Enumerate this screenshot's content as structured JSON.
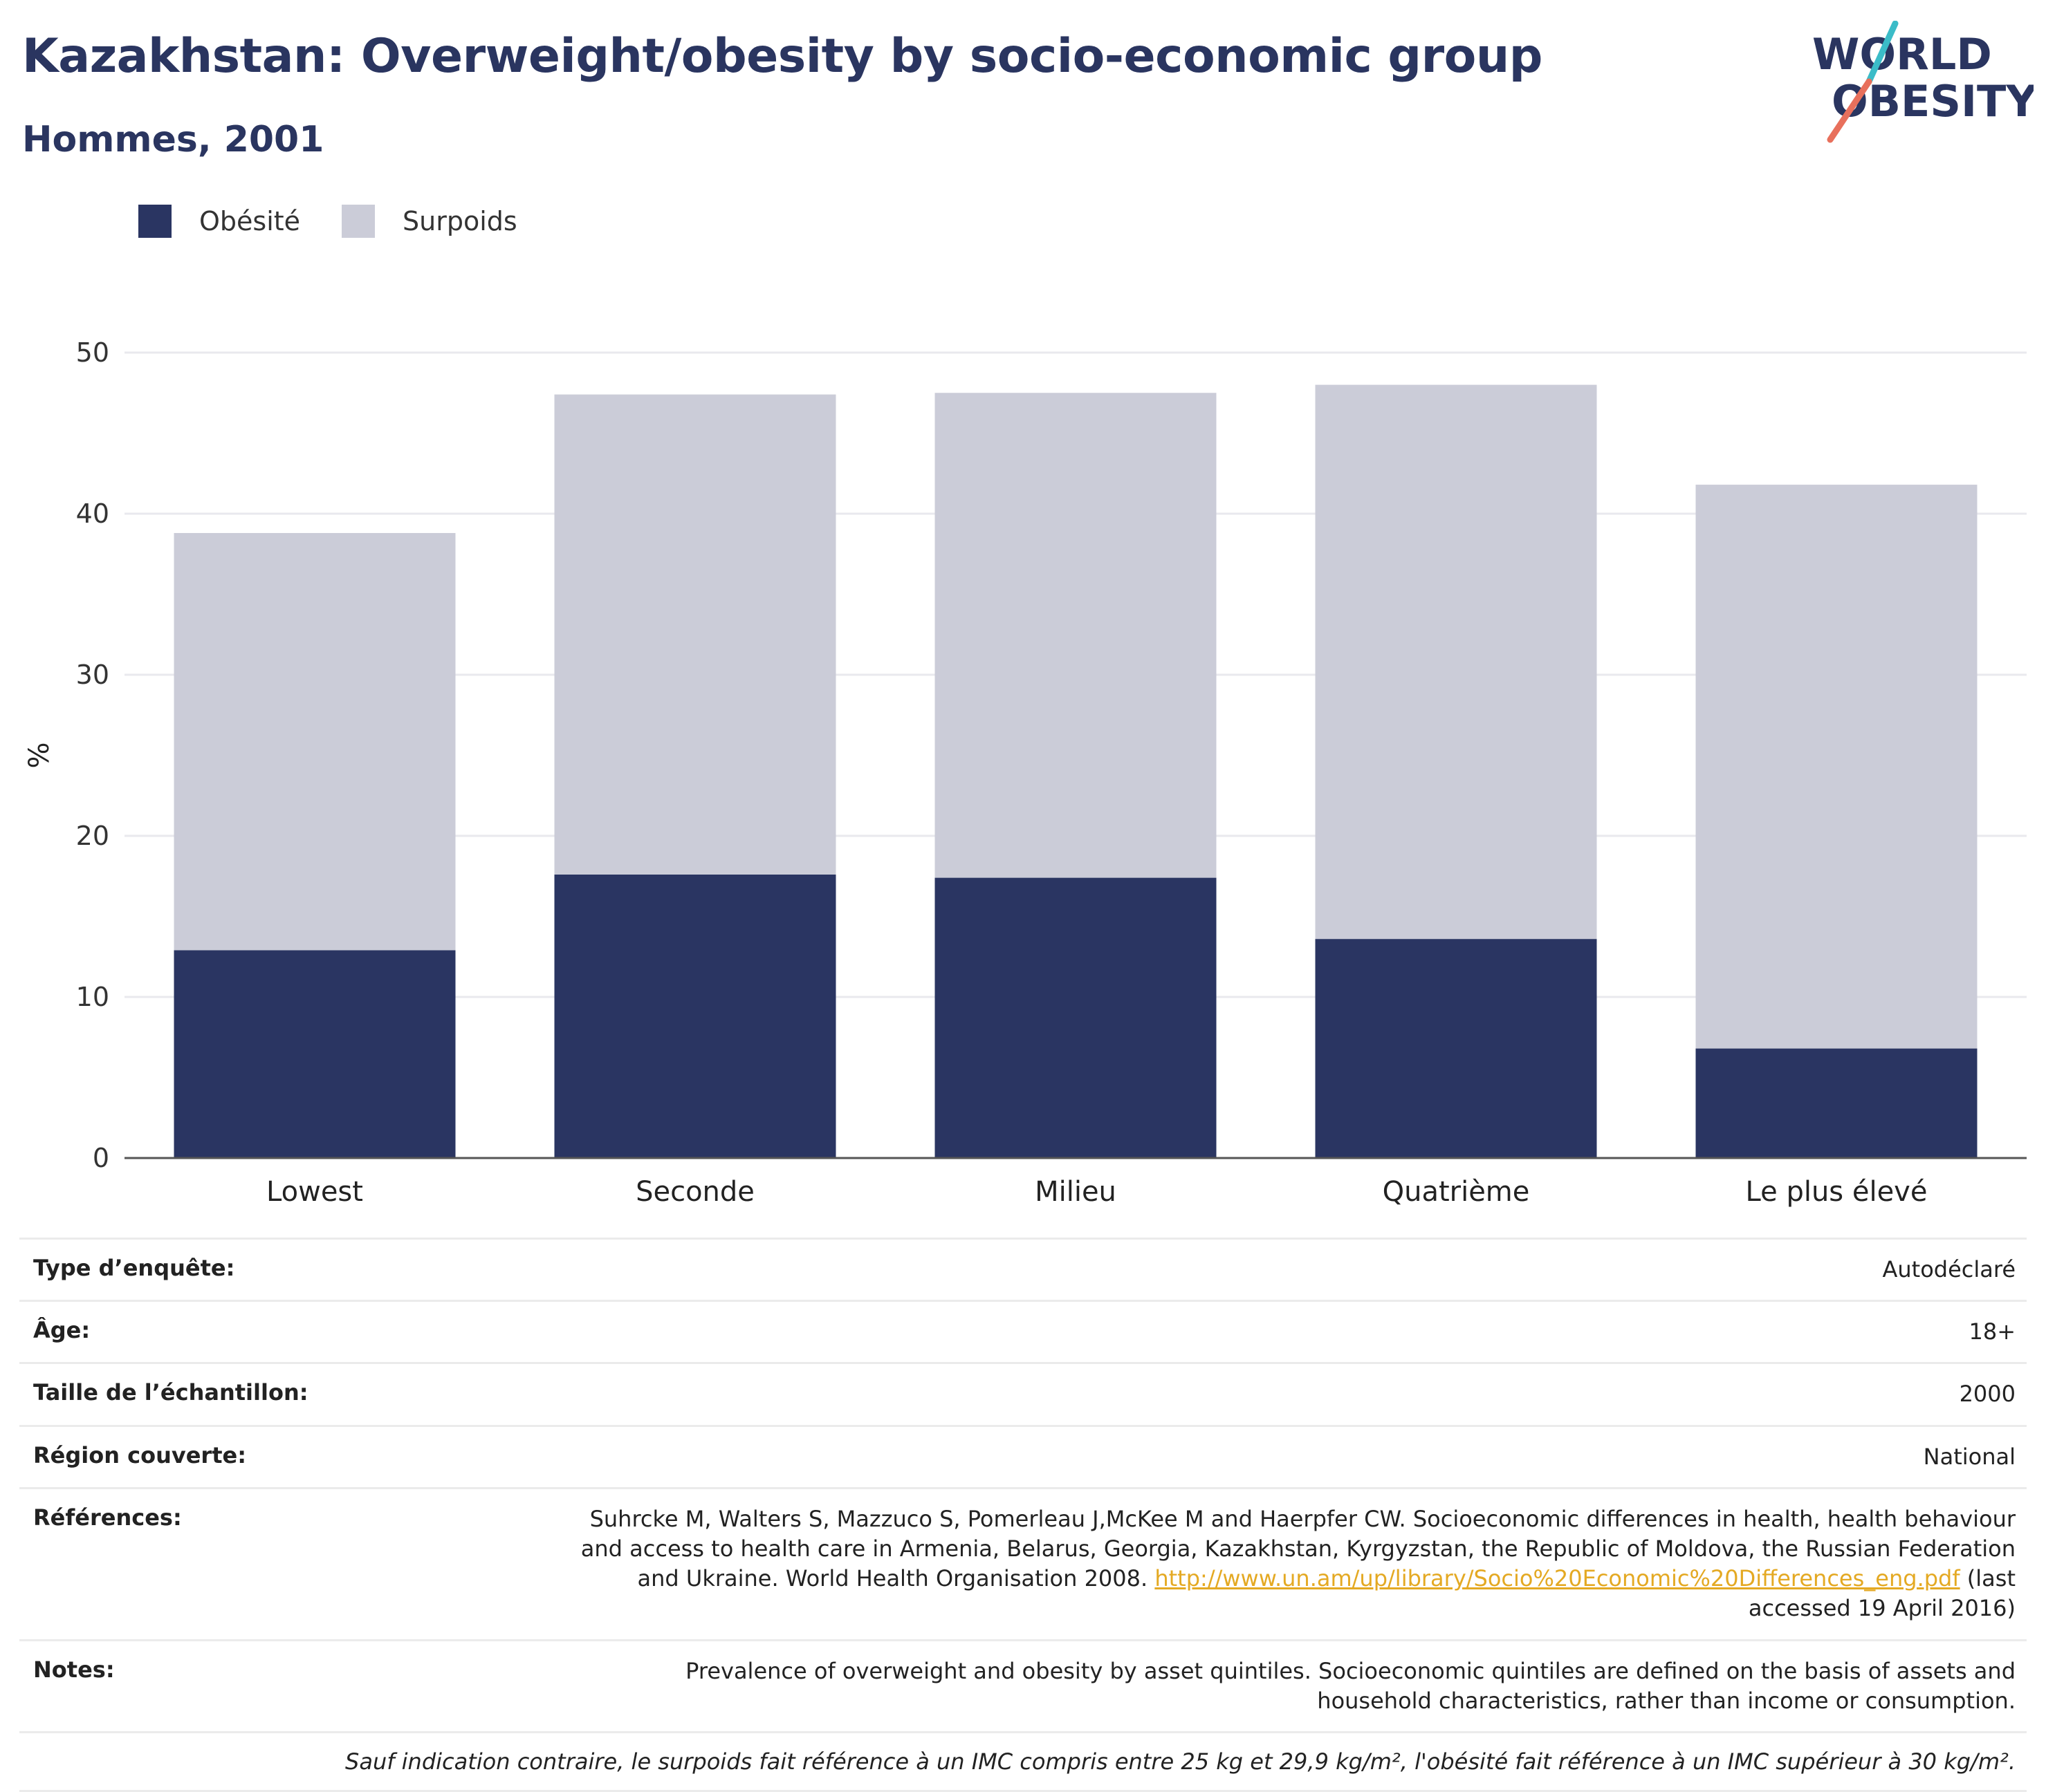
{
  "header": {
    "title": "Kazakhstan: Overweight/obesity by socio-economic group",
    "subtitle": "Hommes, 2001"
  },
  "logo": {
    "line1": "WORLD",
    "line2": "OBESITY"
  },
  "legend": [
    {
      "label": "Obésité",
      "color": "#2a3562"
    },
    {
      "label": "Surpoids",
      "color": "#cbccd8"
    }
  ],
  "chart_data": {
    "type": "bar",
    "stacked": true,
    "categories": [
      "Lowest",
      "Seconde",
      "Milieu",
      "Quatrième",
      "Le plus élevé"
    ],
    "series": [
      {
        "name": "Obésité",
        "color": "#2a3562",
        "values": [
          12.9,
          17.6,
          17.4,
          13.6,
          6.8
        ]
      },
      {
        "name": "Surpoids",
        "color": "#cbccd8",
        "values": [
          25.9,
          29.8,
          30.1,
          34.4,
          35.0
        ]
      }
    ],
    "ylabel": "%",
    "ylim": [
      0,
      50
    ],
    "yticks": [
      0,
      10,
      20,
      30,
      40,
      50
    ],
    "grid": true,
    "legend_position": "top-left"
  },
  "meta": {
    "rows": [
      {
        "key": "Type d’enquête:",
        "value": "Autodéclaré"
      },
      {
        "key": "Âge:",
        "value": "18+"
      },
      {
        "key": "Taille de l’échantillon:",
        "value": "2000"
      },
      {
        "key": "Région couverte:",
        "value": "National"
      }
    ],
    "references_label": "Références:",
    "references_text": "Suhrcke M, Walters S, Mazzuco S, Pomerleau J,McKee M and Haerpfer CW. Socioeconomic differences in health, health behaviour and access to health care in Armenia, Belarus, Georgia, Kazakhstan, Kyrgyzstan, the Republic of Moldova, the Russian Federation and Ukraine. World Health Organisation 2008.",
    "references_link": "http://www.un.am/up/library/Socio%20Economic%20Differences_eng.pdf",
    "references_tail": "(last accessed 19 April 2016)",
    "notes_label": "Notes:",
    "notes_text": "Prevalence of overweight and obesity by asset quintiles. Socioeconomic quintiles are defined on the basis of assets and household characteristics, rather than income or consumption.",
    "footnote": "Sauf indication contraire, le surpoids fait référence à un IMC compris entre 25 kg et 29,9 kg/m², l'obésité fait référence à un IMC supérieur à 30 kg/m²."
  }
}
